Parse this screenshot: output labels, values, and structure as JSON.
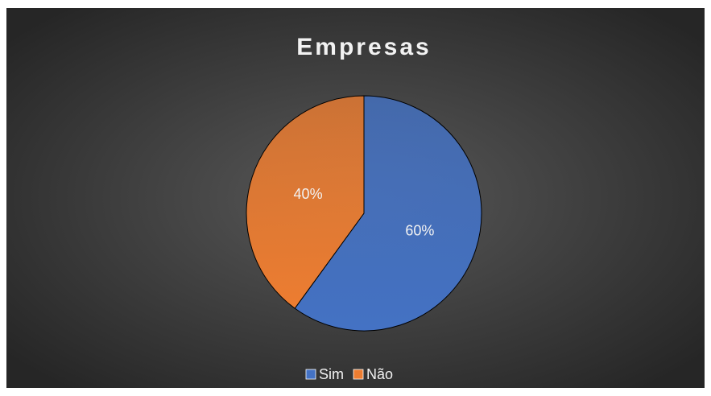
{
  "chart_data": {
    "type": "pie",
    "title": "Empresas",
    "categories": [
      "Sim",
      "Não"
    ],
    "values": [
      60,
      40
    ],
    "value_labels": [
      "60%",
      "40%"
    ],
    "colors": [
      "#4472c4",
      "#ed7d31"
    ],
    "legend": "bottom"
  }
}
